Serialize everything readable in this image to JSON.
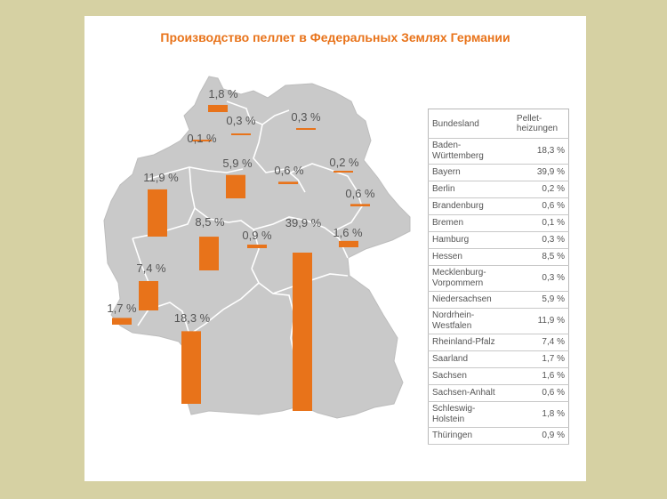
{
  "title": "Производство пеллет в Федеральных Землях Германии",
  "colors": {
    "bar": "#e8731a",
    "map": "#c9c9c9",
    "border": "#ffffff",
    "title": "#e8731a"
  },
  "table": {
    "headers": [
      "Bundesland",
      "Pellet-\nheizungen"
    ],
    "rows": [
      {
        "state": "Baden-\nWürttemberg",
        "value": "18,3 %"
      },
      {
        "state": "Bayern",
        "value": "39,9 %"
      },
      {
        "state": "Berlin",
        "value": "0,2 %"
      },
      {
        "state": "Brandenburg",
        "value": "0,6 %"
      },
      {
        "state": "Bremen",
        "value": "0,1 %"
      },
      {
        "state": "Hamburg",
        "value": "0,3 %"
      },
      {
        "state": "Hessen",
        "value": "8,5 %"
      },
      {
        "state": "Mecklenburg-\nVorpommern",
        "value": "0,3 %"
      },
      {
        "state": "Niedersachsen",
        "value": "5,9 %"
      },
      {
        "state": "Nordrhein-\nWestfalen",
        "value": "11,9 %"
      },
      {
        "state": "Rheinland-Pfalz",
        "value": "7,4 %"
      },
      {
        "state": "Saarland",
        "value": "1,7 %"
      },
      {
        "state": "Sachsen",
        "value": "1,6 %"
      },
      {
        "state": "Sachsen-Anhalt",
        "value": "0,6 %"
      },
      {
        "state": "Schleswig-\nHolstein",
        "value": "1,8 %"
      },
      {
        "state": "Thüringen",
        "value": "0,9 %"
      }
    ]
  },
  "chart_data": {
    "type": "bar",
    "title": "Производство пеллет в Федеральных Землях Германии",
    "unit": "%",
    "categories": [
      "Schleswig-Holstein",
      "Hamburg",
      "Mecklenburg-Vorpommern",
      "Bremen",
      "Niedersachsen",
      "Brandenburg",
      "Berlin",
      "Nordrhein-Westfalen",
      "Sachsen-Anhalt",
      "Hessen",
      "Thüringen",
      "Bayern",
      "Sachsen",
      "Rheinland-Pfalz",
      "Saarland",
      "Baden-Württemberg"
    ],
    "values": [
      1.8,
      0.3,
      0.3,
      0.1,
      5.9,
      0.6,
      0.2,
      11.9,
      0.6,
      8.5,
      0.9,
      39.9,
      1.6,
      7.4,
      1.7,
      18.3
    ],
    "labels": [
      "1,8 %",
      "0,3 %",
      "0,3 %",
      "0,1 %",
      "5,9 %",
      "0,6 %",
      "0,2 %",
      "11,9 %",
      "0,6 %",
      "8,5 %",
      "0,9 %",
      "39,9 %",
      "1,6 %",
      "7,4 %",
      "1,7 %",
      "18,3 %"
    ]
  }
}
